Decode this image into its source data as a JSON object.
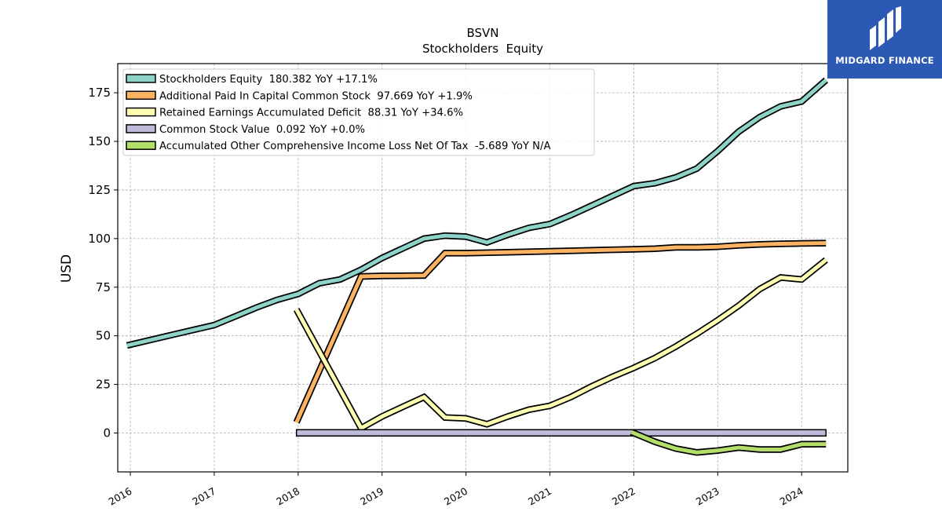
{
  "logo": {
    "text": "MIDGARD FINANCE"
  },
  "chart_data": {
    "type": "line",
    "title": "BSVN",
    "subtitle": "Stockholders  Equity",
    "ylabel": "USD",
    "xlabel": "",
    "xlim": [
      2015.85,
      2024.55
    ],
    "ylim": [
      -20,
      190
    ],
    "yticks": [
      0,
      25,
      50,
      75,
      100,
      125,
      150,
      175
    ],
    "xticks": [
      "2016",
      "2017",
      "2018",
      "2019",
      "2020",
      "2021",
      "2022",
      "2023",
      "2024"
    ],
    "grid": true,
    "legend_position": "top-left",
    "series": [
      {
        "name": "Stockholders Equity  180.382 YoY +17.1%",
        "color": "#8dd3c7",
        "x": [
          2015.96,
          2016.5,
          2017.0,
          2017.25,
          2017.5,
          2017.75,
          2018.0,
          2018.25,
          2018.5,
          2018.75,
          2019.0,
          2019.25,
          2019.5,
          2019.75,
          2020.0,
          2020.25,
          2020.5,
          2020.75,
          2021.0,
          2021.25,
          2021.5,
          2021.75,
          2022.0,
          2022.25,
          2022.5,
          2022.75,
          2023.0,
          2023.25,
          2023.5,
          2023.75,
          2024.0,
          2024.29
        ],
        "values": [
          45,
          50.5,
          55.5,
          60,
          64.5,
          68.5,
          71.5,
          77,
          79,
          84,
          90,
          95,
          100,
          101.5,
          101,
          98,
          102,
          105.5,
          107.5,
          112,
          117,
          122,
          127,
          128.5,
          131.5,
          136,
          145,
          155,
          162.5,
          168,
          170.5,
          181.5
        ]
      },
      {
        "name": "Additional Paid In Capital Common Stock  97.669 YoY +1.9%",
        "color": "#fdb462",
        "x": [
          2017.98,
          2018.75,
          2019.0,
          2019.5,
          2019.75,
          2020.0,
          2020.5,
          2021.0,
          2021.5,
          2022.0,
          2022.25,
          2022.5,
          2022.75,
          2023.0,
          2023.25,
          2023.5,
          2023.75,
          2024.0,
          2024.29
        ],
        "values": [
          5.5,
          80.5,
          80.8,
          81,
          92.5,
          92.5,
          93,
          93.5,
          94,
          94.5,
          94.8,
          95.5,
          95.5,
          95.8,
          96.5,
          97,
          97.3,
          97.5,
          97.7
        ]
      },
      {
        "name": "Retained Earnings Accumulated Deficit  88.31 YoY +34.6%",
        "color": "#ffffb3",
        "x": [
          2017.98,
          2018.75,
          2019.0,
          2019.25,
          2019.5,
          2019.75,
          2020.0,
          2020.25,
          2020.5,
          2020.75,
          2021.0,
          2021.25,
          2021.5,
          2021.75,
          2022.0,
          2022.25,
          2022.5,
          2022.75,
          2023.0,
          2023.25,
          2023.5,
          2023.75,
          2024.0,
          2024.29
        ],
        "values": [
          63.5,
          2.5,
          8.5,
          13.5,
          18.5,
          8,
          7.5,
          4.5,
          8.5,
          12,
          14,
          18.5,
          24,
          29,
          33.5,
          38.5,
          44.5,
          51,
          58,
          65.5,
          74,
          80,
          79,
          89
        ]
      },
      {
        "name": "Common Stock Value  0.092 YoY +0.0%",
        "color": "#bebada",
        "x": [
          2017.98,
          2024.29
        ],
        "values": [
          0.092,
          0.092
        ]
      },
      {
        "name": "Accumulated Other Comprehensive Income Loss Net Of Tax  -5.689 YoY N/A",
        "color": "#b3de69",
        "x": [
          2021.97,
          2022.25,
          2022.5,
          2022.75,
          2023.0,
          2023.25,
          2023.5,
          2023.75,
          2024.0,
          2024.29
        ],
        "values": [
          0.5,
          -4.5,
          -8,
          -10,
          -9,
          -7.5,
          -8.5,
          -8.5,
          -5.8,
          -5.7
        ]
      }
    ]
  }
}
